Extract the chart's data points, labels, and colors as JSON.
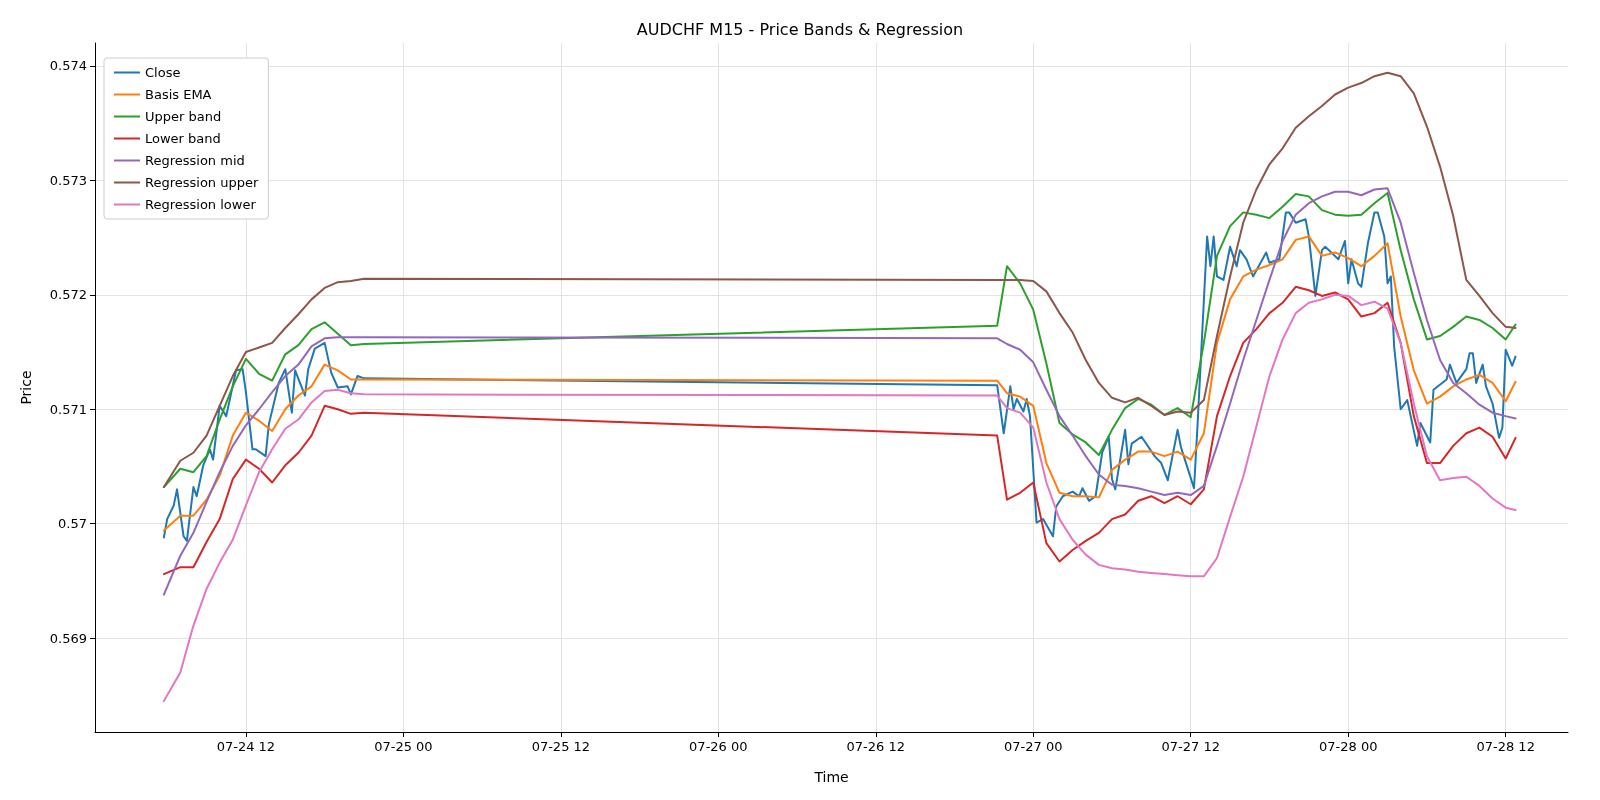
{
  "chart_data": {
    "type": "line",
    "title": "AUDCHF M15 - Price Bands & Regression",
    "xlabel": "Time",
    "ylabel": "Price",
    "legend": "top left",
    "grid": true,
    "xlim": [
      "--07-24T00:30",
      "--07-28T16:45"
    ],
    "xticks": [
      {
        "value": "--07-24T12:00",
        "label": "07-24 12"
      },
      {
        "value": "--07-25T00:00",
        "label": "07-25 00"
      },
      {
        "value": "--07-25T12:00",
        "label": "07-25 12"
      },
      {
        "value": "--07-26T00:00",
        "label": "07-26 00"
      },
      {
        "value": "--07-26T12:00",
        "label": "07-26 12"
      },
      {
        "value": "--07-27T00:00",
        "label": "07-27 00"
      },
      {
        "value": "--07-27T12:00",
        "label": "07-27 12"
      },
      {
        "value": "--07-28T00:00",
        "label": "07-28 00"
      },
      {
        "value": "--07-28T12:00",
        "label": "07-28 12"
      }
    ],
    "ylim": [
      0.56818,
      0.5742
    ],
    "yticks": [
      0.569,
      0.57,
      0.571,
      0.572,
      0.573,
      0.574
    ],
    "x": [
      "--07-24T05:45",
      "--07-24T07:00",
      "--07-24T08:00",
      "--07-24T09:00",
      "--07-24T10:00",
      "--07-24T11:00",
      "--07-24T12:00",
      "--07-24T13:00",
      "--07-24T14:00",
      "--07-24T15:00",
      "--07-24T16:00",
      "--07-24T17:00",
      "--07-24T18:00",
      "--07-24T19:00",
      "--07-24T20:00",
      "--07-24T21:00",
      "--07-26T21:15",
      "--07-26T22:00",
      "--07-26T23:00",
      "--07-27T00:00",
      "--07-27T01:00",
      "--07-27T02:00",
      "--07-27T03:00",
      "--07-27T04:00",
      "--07-27T05:00",
      "--07-27T06:00",
      "--07-27T07:00",
      "--07-27T08:00",
      "--07-27T09:00",
      "--07-27T10:00",
      "--07-27T11:00",
      "--07-27T12:00",
      "--07-27T13:00",
      "--07-27T14:00",
      "--07-27T15:00",
      "--07-27T16:00",
      "--07-27T17:00",
      "--07-27T18:00",
      "--07-27T19:00",
      "--07-27T20:00",
      "--07-27T21:00",
      "--07-27T22:00",
      "--07-27T23:00",
      "--07-28T00:00",
      "--07-28T01:00",
      "--07-28T02:00",
      "--07-28T03:00",
      "--07-28T04:00",
      "--07-28T05:00",
      "--07-28T06:00",
      "--07-28T07:00",
      "--07-28T08:00",
      "--07-28T09:00",
      "--07-28T10:00",
      "--07-28T11:00",
      "--07-28T12:00",
      "--07-28T12:45"
    ],
    "series": [
      {
        "name": "Close",
        "color": "#1f77b4",
        "x": [
          "--07-24T05:45",
          "--07-24T06:00",
          "--07-24T06:30",
          "--07-24T06:45",
          "--07-24T07:15",
          "--07-24T07:30",
          "--07-24T08:00",
          "--07-24T08:15",
          "--07-24T08:45",
          "--07-24T09:15",
          "--07-24T09:30",
          "--07-24T10:00",
          "--07-24T10:30",
          "--07-24T11:15",
          "--07-24T11:45",
          "--07-24T12:00",
          "--07-24T12:30",
          "--07-24T12:45",
          "--07-24T13:30",
          "--07-24T13:45",
          "--07-24T14:30",
          "--07-24T15:00",
          "--07-24T15:30",
          "--07-24T15:45",
          "--07-24T16:30",
          "--07-24T16:45",
          "--07-24T17:15",
          "--07-24T18:00",
          "--07-24T18:30",
          "--07-24T19:00",
          "--07-24T19:45",
          "--07-24T20:00",
          "--07-24T20:30",
          "--07-24T21:00",
          "--07-26T21:15",
          "--07-26T21:45",
          "--07-26T22:15",
          "--07-26T22:30",
          "--07-26T22:45",
          "--07-26T23:15",
          "--07-26T23:30",
          "--07-26T23:45",
          "--07-27T00:15",
          "--07-27T00:45",
          "--07-27T01:00",
          "--07-27T01:30",
          "--07-27T01:45",
          "--07-27T02:15",
          "--07-27T03:00",
          "--07-27T03:30",
          "--07-27T03:45",
          "--07-27T04:15",
          "--07-27T04:45",
          "--07-27T05:15",
          "--07-27T05:45",
          "--07-27T06:00",
          "--07-27T06:15",
          "--07-27T07:00",
          "--07-27T07:15",
          "--07-27T07:30",
          "--07-27T08:15",
          "--07-27T09:15",
          "--07-27T09:45",
          "--07-27T10:15",
          "--07-27T11:00",
          "--07-27T11:15",
          "--07-27T11:45",
          "--07-27T12:15",
          "--07-27T12:30",
          "--07-27T13:15",
          "--07-27T13:30",
          "--07-27T13:45",
          "--07-27T14:00",
          "--07-27T14:30",
          "--07-27T15:00",
          "--07-27T15:30",
          "--07-27T15:45",
          "--07-27T16:15",
          "--07-27T16:45",
          "--07-27T17:45",
          "--07-27T18:00",
          "--07-27T18:45",
          "--07-27T19:15",
          "--07-27T19:30",
          "--07-27T20:00",
          "--07-27T20:45",
          "--07-27T21:00",
          "--07-27T21:30",
          "--07-27T22:00",
          "--07-27T22:15",
          "--07-27T23:15",
          "--07-27T23:45",
          "--07-28T00:00",
          "--07-28T00:15",
          "--07-28T00:45",
          "--07-28T01:00",
          "--07-28T01:30",
          "--07-28T02:00",
          "--07-28T02:15",
          "--07-28T02:45",
          "--07-28T03:00",
          "--07-28T03:15",
          "--07-28T03:30",
          "--07-28T04:00",
          "--07-28T04:30",
          "--07-28T05:15",
          "--07-28T05:30",
          "--07-28T06:15",
          "--07-28T06:30",
          "--07-28T07:30",
          "--07-28T07:45",
          "--07-28T08:15",
          "--07-28T09:00",
          "--07-28T09:15",
          "--07-28T09:30",
          "--07-28T09:45",
          "--07-28T10:15",
          "--07-28T10:30",
          "--07-28T11:00",
          "--07-28T11:30",
          "--07-28T11:45",
          "--07-28T12:00",
          "--07-28T12:30",
          "--07-28T12:45"
        ],
        "values": [
          0.56988,
          0.57004,
          0.57016,
          0.5703,
          0.56989,
          0.56985,
          0.57032,
          0.57024,
          0.57051,
          0.57065,
          0.57056,
          0.57103,
          0.57094,
          0.57134,
          0.57135,
          0.57115,
          0.57065,
          0.57065,
          0.57059,
          0.57087,
          0.57123,
          0.57135,
          0.57097,
          0.57134,
          0.57112,
          0.57135,
          0.57153,
          0.57158,
          0.57132,
          0.57119,
          0.5712,
          0.57113,
          0.57129,
          0.57127,
          0.57121,
          0.57079,
          0.5712,
          0.571,
          0.57109,
          0.57098,
          0.57109,
          0.57094,
          0.57001,
          0.57004,
          0.56999,
          0.56989,
          0.57015,
          0.57024,
          0.57028,
          0.57024,
          0.57031,
          0.5702,
          0.57024,
          0.57062,
          0.57076,
          0.57039,
          0.5703,
          0.57082,
          0.57052,
          0.5707,
          0.57076,
          0.57059,
          0.57053,
          0.57038,
          0.57082,
          0.57067,
          0.57049,
          0.57031,
          0.57082,
          0.57251,
          0.57225,
          0.57251,
          0.57216,
          0.57213,
          0.57242,
          0.57225,
          0.57239,
          0.57231,
          0.57216,
          0.57237,
          0.57228,
          0.57231,
          0.57272,
          0.57272,
          0.57263,
          0.57266,
          0.57251,
          0.57199,
          0.57239,
          0.57242,
          0.57231,
          0.57247,
          0.5721,
          0.57231,
          0.5721,
          0.57207,
          0.57245,
          0.57272,
          0.57272,
          0.57251,
          0.5721,
          0.57216,
          0.57155,
          0.571,
          0.57108,
          0.57068,
          0.57088,
          0.57071,
          0.57117,
          0.57126,
          0.57139,
          0.57123,
          0.57135,
          0.57149,
          0.57149,
          0.57123,
          0.57139,
          0.5712,
          0.57105,
          0.57075,
          0.57084,
          0.57152,
          0.57138,
          0.57146
        ]
      },
      {
        "name": "Basis EMA",
        "color": "#ff7f0e",
        "values": [
          0.56994,
          0.57007,
          0.57007,
          0.57021,
          0.57042,
          0.57077,
          0.57097,
          0.5709,
          0.57081,
          0.571,
          0.57112,
          0.5712,
          0.57139,
          0.57134,
          0.57126,
          0.57126,
          0.57125,
          0.57114,
          0.57111,
          0.57103,
          0.57053,
          0.57027,
          0.57024,
          0.57024,
          0.57023,
          0.57047,
          0.57056,
          0.57063,
          0.57063,
          0.57059,
          0.57063,
          0.57056,
          0.57079,
          0.57158,
          0.57196,
          0.57216,
          0.57222,
          0.57226,
          0.57231,
          0.57248,
          0.57251,
          0.57234,
          0.57237,
          0.57232,
          0.57225,
          0.57234,
          0.57245,
          0.57181,
          0.57134,
          0.57105,
          0.57111,
          0.5712,
          0.57126,
          0.5713,
          0.57123,
          0.57107,
          0.57124
        ]
      },
      {
        "name": "Upper band",
        "color": "#2ca02c",
        "values": [
          0.57032,
          0.57048,
          0.57045,
          0.57059,
          0.57091,
          0.5712,
          0.57144,
          0.57131,
          0.57125,
          0.57148,
          0.57156,
          0.5717,
          0.57176,
          0.57166,
          0.57156,
          0.57157,
          0.57173,
          0.57225,
          0.5721,
          0.57187,
          0.5714,
          0.57088,
          0.57078,
          0.57071,
          0.5706,
          0.57082,
          0.57101,
          0.57109,
          0.57104,
          0.57095,
          0.57101,
          0.57093,
          0.57158,
          0.57234,
          0.5726,
          0.57272,
          0.5727,
          0.57267,
          0.57277,
          0.57288,
          0.57286,
          0.57274,
          0.5727,
          0.57269,
          0.5727,
          0.5728,
          0.57289,
          0.57239,
          0.57196,
          0.57161,
          0.57164,
          0.57172,
          0.57181,
          0.57178,
          0.57171,
          0.57161,
          0.57174
        ]
      },
      {
        "name": "Lower band",
        "color": "#d62728",
        "values": [
          0.56956,
          0.56962,
          0.56962,
          0.56984,
          0.57004,
          0.57039,
          0.57056,
          0.57048,
          0.57036,
          0.57051,
          0.57062,
          0.57077,
          0.57103,
          0.571,
          0.57096,
          0.57097,
          0.57077,
          0.57021,
          0.57027,
          0.57036,
          0.56983,
          0.56967,
          0.56977,
          0.56985,
          0.56992,
          0.57004,
          0.57008,
          0.5702,
          0.57024,
          0.57018,
          0.57024,
          0.57017,
          0.5703,
          0.57094,
          0.57129,
          0.57158,
          0.5717,
          0.57184,
          0.57193,
          0.57207,
          0.57204,
          0.57199,
          0.57202,
          0.57196,
          0.57181,
          0.57184,
          0.57193,
          0.57158,
          0.57094,
          0.57053,
          0.57053,
          0.57068,
          0.57079,
          0.57084,
          0.57076,
          0.57057,
          0.57075
        ]
      },
      {
        "name": "Regression mid",
        "color": "#9467bd",
        "values": [
          0.56938,
          0.56972,
          0.56992,
          0.57019,
          0.57045,
          0.57068,
          0.57086,
          0.571,
          0.57115,
          0.57129,
          0.57139,
          0.57155,
          0.57162,
          0.57163,
          0.57163,
          0.57163,
          0.57162,
          0.57157,
          0.57152,
          0.57141,
          0.57117,
          0.57094,
          0.57077,
          0.57059,
          0.57043,
          0.57034,
          0.57033,
          0.57031,
          0.57028,
          0.57025,
          0.57027,
          0.57025,
          0.57033,
          0.57068,
          0.57105,
          0.57143,
          0.57178,
          0.57213,
          0.57247,
          0.5727,
          0.5728,
          0.57286,
          0.5729,
          0.5729,
          0.57287,
          0.57292,
          0.57293,
          0.57263,
          0.57219,
          0.57178,
          0.57143,
          0.57123,
          0.57114,
          0.57104,
          0.57097,
          0.57094,
          0.57092
        ]
      },
      {
        "name": "Regression upper",
        "color": "#8c564b",
        "values": [
          0.57032,
          0.57055,
          0.57062,
          0.57077,
          0.57103,
          0.57129,
          0.5715,
          0.57154,
          0.57158,
          0.57171,
          0.57183,
          0.57196,
          0.57206,
          0.57211,
          0.57212,
          0.57214,
          0.57213,
          0.57213,
          0.57213,
          0.57212,
          0.57203,
          0.57184,
          0.57167,
          0.57143,
          0.57123,
          0.5711,
          0.57106,
          0.5711,
          0.57103,
          0.57095,
          0.57098,
          0.57097,
          0.57108,
          0.57164,
          0.57216,
          0.57263,
          0.57292,
          0.57314,
          0.57328,
          0.57346,
          0.57356,
          0.57365,
          0.57375,
          0.57381,
          0.57385,
          0.57391,
          0.57394,
          0.57391,
          0.57376,
          0.57347,
          0.57312,
          0.57269,
          0.57213,
          0.57199,
          0.57184,
          0.57172,
          0.57171
        ]
      },
      {
        "name": "Regression lower",
        "color": "#e377c2",
        "values": [
          0.56845,
          0.5687,
          0.56911,
          0.56943,
          0.56966,
          0.56986,
          0.57016,
          0.57045,
          0.57065,
          0.57083,
          0.57091,
          0.57106,
          0.57116,
          0.57117,
          0.57114,
          0.57113,
          0.57112,
          0.57101,
          0.57097,
          0.57084,
          0.57036,
          0.57004,
          0.56986,
          0.56973,
          0.56964,
          0.56961,
          0.5696,
          0.56958,
          0.56957,
          0.56956,
          0.56955,
          0.56954,
          0.56954,
          0.5697,
          0.57006,
          0.57041,
          0.57085,
          0.57129,
          0.57161,
          0.57184,
          0.57193,
          0.57196,
          0.572,
          0.57199,
          0.57191,
          0.57194,
          0.57188,
          0.57158,
          0.57105,
          0.57059,
          0.57038,
          0.5704,
          0.57041,
          0.57033,
          0.57022,
          0.57014,
          0.57012
        ]
      }
    ]
  }
}
